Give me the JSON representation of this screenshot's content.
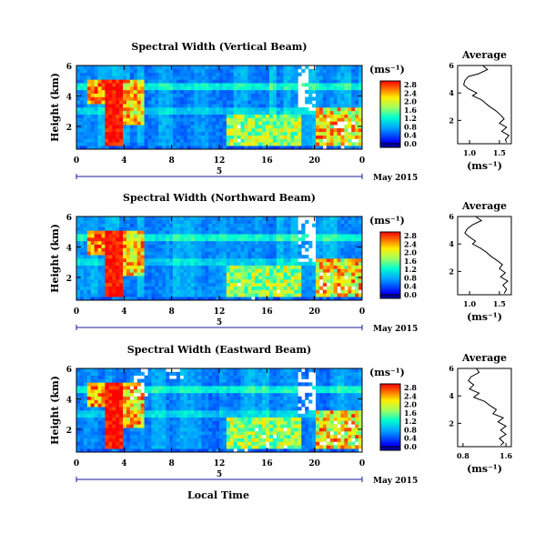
{
  "figure": {
    "xlabel": "Local Time",
    "date_label": "May 2015",
    "day_label": "5",
    "units_label": "(ms⁻¹)",
    "profile_title": "Average",
    "profile_xlabel": "(ms⁻¹)"
  },
  "panels": [
    {
      "title": "Spectral Width (Vertical Beam)",
      "ylabel": "Height (km)",
      "yticks": [
        "6",
        "4",
        "2"
      ],
      "xticks": [
        "0",
        "4",
        "8",
        "12",
        "16",
        "20",
        "0"
      ],
      "cbar_ticks": [
        "0.0",
        "0.4",
        "0.8",
        "1.2",
        "1.6",
        "2.0",
        "2.4",
        "2.8"
      ],
      "profile_xticks": [
        "1.0",
        "1.5"
      ],
      "profile_yticks": [
        "6",
        "4",
        "2"
      ]
    },
    {
      "title": "Spectral Width (Northward Beam)",
      "ylabel": "Height (km)",
      "yticks": [
        "6",
        "4",
        "2"
      ],
      "xticks": [
        "0",
        "4",
        "8",
        "12",
        "16",
        "20",
        "0"
      ],
      "cbar_ticks": [
        "0.0",
        "0.4",
        "0.8",
        "1.2",
        "1.6",
        "2.0",
        "2.4",
        "2.8"
      ],
      "profile_xticks": [
        "1.0",
        "1.5"
      ],
      "profile_yticks": [
        "6",
        "4",
        "2"
      ]
    },
    {
      "title": "Spectral Width (Eastward Beam)",
      "ylabel": "Height (km)",
      "yticks": [
        "6",
        "4",
        "2"
      ],
      "xticks": [
        "0",
        "4",
        "8",
        "12",
        "16",
        "20",
        "0"
      ],
      "cbar_ticks": [
        "0.0",
        "0.4",
        "0.8",
        "1.2",
        "1.6",
        "2.0",
        "2.4",
        "2.8"
      ],
      "profile_xticks": [
        "0.8",
        "1.6"
      ],
      "profile_yticks": [
        "6",
        "4",
        "2"
      ]
    }
  ],
  "chart_data": [
    {
      "type": "heatmap",
      "title": "Spectral Width (Vertical Beam)",
      "ylabel": "Height (km)",
      "x_range_hours": [
        0,
        24
      ],
      "y_range_km": [
        0.5,
        6
      ],
      "color_range": [
        0.0,
        2.8
      ],
      "colormap": "blue-cyan-green-yellow-red",
      "features": [
        {
          "x_hours": [
            2,
            4
          ],
          "y_km": [
            0.5,
            5
          ],
          "value": 2.8
        },
        {
          "x_hours": [
            4,
            6
          ],
          "y_km": [
            2,
            5
          ],
          "value": 2.2
        },
        {
          "x_hours": [
            13,
            19
          ],
          "y_km": [
            0.5,
            3
          ],
          "value": 1.8
        },
        {
          "x_hours": [
            20,
            24
          ],
          "y_km": [
            0.5,
            3
          ],
          "value": 2.0
        }
      ],
      "profile": {
        "title": "Average",
        "xlabel": "(ms⁻¹)",
        "xlim": [
          0.8,
          1.7
        ],
        "points": [
          [
            1.22,
            6.0
          ],
          [
            1.3,
            5.7
          ],
          [
            1.15,
            5.4
          ],
          [
            0.98,
            5.2
          ],
          [
            0.92,
            4.9
          ],
          [
            0.9,
            4.6
          ],
          [
            0.98,
            4.3
          ],
          [
            1.12,
            4.0
          ],
          [
            1.05,
            3.8
          ],
          [
            1.2,
            3.5
          ],
          [
            1.28,
            3.2
          ],
          [
            1.34,
            3.0
          ],
          [
            1.44,
            2.7
          ],
          [
            1.52,
            2.4
          ],
          [
            1.58,
            2.1
          ],
          [
            1.5,
            1.8
          ],
          [
            1.62,
            1.5
          ],
          [
            1.54,
            1.2
          ],
          [
            1.66,
            0.9
          ],
          [
            1.6,
            0.6
          ],
          [
            1.62,
            0.4
          ]
        ]
      }
    },
    {
      "type": "heatmap",
      "title": "Spectral Width (Northward Beam)",
      "ylabel": "Height (km)",
      "x_range_hours": [
        0,
        24
      ],
      "y_range_km": [
        0.5,
        6
      ],
      "color_range": [
        0.0,
        2.8
      ],
      "colormap": "blue-cyan-green-yellow-red",
      "features": [
        {
          "x_hours": [
            2,
            4
          ],
          "y_km": [
            0.5,
            5
          ],
          "value": 2.8
        },
        {
          "x_hours": [
            4,
            6
          ],
          "y_km": [
            2,
            5
          ],
          "value": 2.4
        },
        {
          "x_hours": [
            13,
            19
          ],
          "y_km": [
            0.5,
            3
          ],
          "value": 1.6
        },
        {
          "x_hours": [
            20,
            24
          ],
          "y_km": [
            0.5,
            3
          ],
          "value": 2.0
        }
      ],
      "profile": {
        "title": "Average",
        "xlabel": "(ms⁻¹)",
        "xlim": [
          0.8,
          1.7
        ],
        "points": [
          [
            1.1,
            6.0
          ],
          [
            1.2,
            5.7
          ],
          [
            1.05,
            5.4
          ],
          [
            0.96,
            5.1
          ],
          [
            0.92,
            4.8
          ],
          [
            1.0,
            4.5
          ],
          [
            1.1,
            4.2
          ],
          [
            1.05,
            4.0
          ],
          [
            1.18,
            3.7
          ],
          [
            1.28,
            3.4
          ],
          [
            1.36,
            3.1
          ],
          [
            1.46,
            2.8
          ],
          [
            1.55,
            2.5
          ],
          [
            1.5,
            2.2
          ],
          [
            1.6,
            1.9
          ],
          [
            1.52,
            1.6
          ],
          [
            1.64,
            1.3
          ],
          [
            1.56,
            1.0
          ],
          [
            1.62,
            0.7
          ],
          [
            1.58,
            0.4
          ]
        ]
      }
    },
    {
      "type": "heatmap",
      "title": "Spectral Width (Eastward Beam)",
      "ylabel": "Height (km)",
      "x_range_hours": [
        0,
        24
      ],
      "y_range_km": [
        0.5,
        6
      ],
      "color_range": [
        0.0,
        2.8
      ],
      "colormap": "blue-cyan-green-yellow-red",
      "features": [
        {
          "x_hours": [
            2,
            4
          ],
          "y_km": [
            0.5,
            5
          ],
          "value": 2.8
        },
        {
          "x_hours": [
            4,
            6
          ],
          "y_km": [
            1.5,
            5
          ],
          "value": 2.2
        },
        {
          "x_hours": [
            13,
            19
          ],
          "y_km": [
            0.5,
            3
          ],
          "value": 1.6
        },
        {
          "x_hours": [
            20,
            24
          ],
          "y_km": [
            0.5,
            3.5
          ],
          "value": 2.4
        }
      ],
      "profile": {
        "title": "Average",
        "xlabel": "(ms⁻¹)",
        "xlim": [
          0.7,
          1.7
        ],
        "points": [
          [
            1.05,
            6.0
          ],
          [
            1.1,
            5.7
          ],
          [
            0.95,
            5.4
          ],
          [
            0.9,
            5.1
          ],
          [
            1.0,
            4.8
          ],
          [
            0.92,
            4.5
          ],
          [
            1.1,
            4.2
          ],
          [
            1.0,
            3.9
          ],
          [
            1.2,
            3.6
          ],
          [
            1.3,
            3.3
          ],
          [
            1.42,
            3.0
          ],
          [
            1.36,
            2.7
          ],
          [
            1.55,
            2.4
          ],
          [
            1.45,
            2.1
          ],
          [
            1.6,
            1.8
          ],
          [
            1.5,
            1.5
          ],
          [
            1.6,
            1.2
          ],
          [
            1.48,
            0.9
          ],
          [
            1.56,
            0.6
          ],
          [
            1.5,
            0.4
          ]
        ]
      }
    }
  ]
}
